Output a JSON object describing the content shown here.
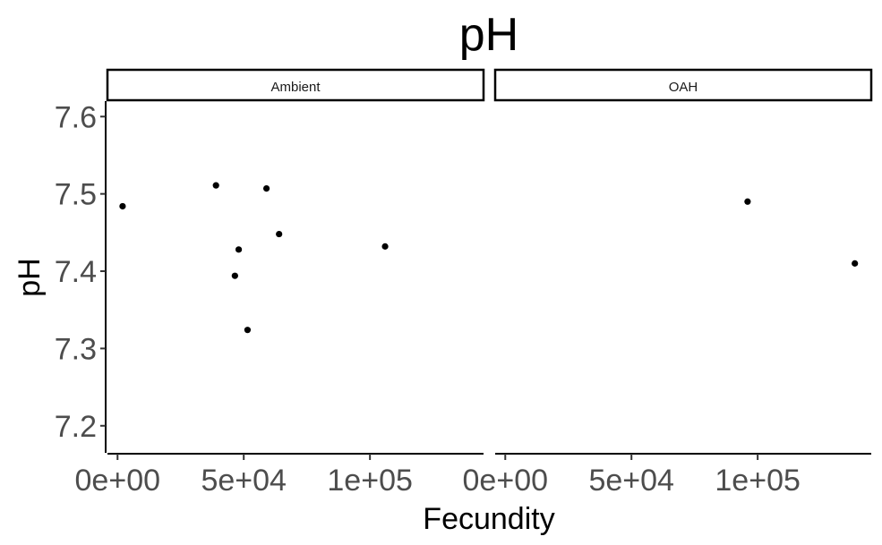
{
  "chart_data": {
    "type": "scatter",
    "title": "pH",
    "xlabel": "Fecundity",
    "ylabel": "pH",
    "xlim": [
      -4000,
      145000
    ],
    "ylim": [
      7.165,
      7.62
    ],
    "x_ticks": [
      0,
      50000,
      100000
    ],
    "x_tick_labels": [
      "0e+00",
      "5e+04",
      "1e+05"
    ],
    "y_ticks": [
      7.2,
      7.3,
      7.4,
      7.5,
      7.6
    ],
    "y_tick_labels": [
      "7.2",
      "7.3",
      "7.4",
      "7.5",
      "7.6"
    ],
    "grid": false,
    "point_color": "#000000",
    "panels": [
      {
        "label": "Ambient",
        "points": [
          {
            "x": 2000,
            "y": 7.484
          },
          {
            "x": 39000,
            "y": 7.511
          },
          {
            "x": 46500,
            "y": 7.394
          },
          {
            "x": 48000,
            "y": 7.428
          },
          {
            "x": 51500,
            "y": 7.324
          },
          {
            "x": 59000,
            "y": 7.507
          },
          {
            "x": 64000,
            "y": 7.448
          },
          {
            "x": 106000,
            "y": 7.432
          }
        ]
      },
      {
        "label": "OAH",
        "points": [
          {
            "x": 96000,
            "y": 7.49
          },
          {
            "x": 138500,
            "y": 7.41
          }
        ]
      }
    ]
  }
}
